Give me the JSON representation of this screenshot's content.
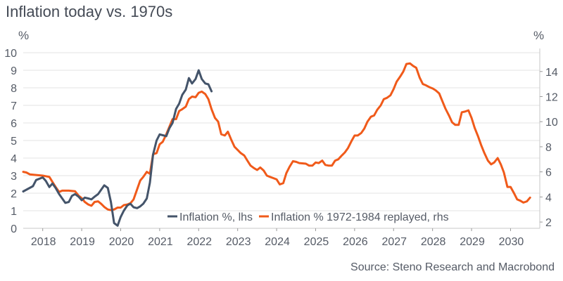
{
  "chart_data": {
    "type": "line",
    "title": "Inflation today vs. 1970s",
    "left_axis": {
      "unit": "%",
      "ylim": [
        0,
        10
      ],
      "ticks": [
        0,
        1,
        2,
        3,
        4,
        5,
        6,
        7,
        8,
        9,
        10
      ]
    },
    "right_axis": {
      "unit": "%",
      "ylim": [
        1.5,
        15.5
      ],
      "ticks": [
        2,
        4,
        6,
        8,
        10,
        12,
        14
      ]
    },
    "x_axis": {
      "xlim": [
        2017.5,
        2030.75
      ],
      "ticks": [
        2018,
        2019,
        2020,
        2021,
        2022,
        2023,
        2024,
        2025,
        2026,
        2027,
        2028,
        2029,
        2030
      ],
      "tick_labels": [
        "2018",
        "2019",
        "2020",
        "2021",
        "2022",
        "2023",
        "2024",
        "2025",
        "2026",
        "2027",
        "2028",
        "2029",
        "2030"
      ]
    },
    "grid": true,
    "legend_position": "bottom-center",
    "series": [
      {
        "name": "Inflation %, lhs",
        "axis": "left",
        "color": "#44546a",
        "points": [
          [
            2017.5,
            2.1
          ],
          [
            2017.75,
            2.4
          ],
          [
            2017.83,
            2.75
          ],
          [
            2018.0,
            2.9
          ],
          [
            2018.08,
            2.7
          ],
          [
            2018.17,
            2.35
          ],
          [
            2018.25,
            2.55
          ],
          [
            2018.33,
            2.3
          ],
          [
            2018.42,
            1.95
          ],
          [
            2018.58,
            1.45
          ],
          [
            2018.67,
            1.5
          ],
          [
            2018.75,
            1.85
          ],
          [
            2018.83,
            1.95
          ],
          [
            2018.92,
            1.8
          ],
          [
            2019.0,
            1.6
          ],
          [
            2019.08,
            1.75
          ],
          [
            2019.17,
            1.7
          ],
          [
            2019.25,
            1.65
          ],
          [
            2019.33,
            1.8
          ],
          [
            2019.42,
            1.95
          ],
          [
            2019.5,
            2.2
          ],
          [
            2019.58,
            2.45
          ],
          [
            2019.67,
            2.3
          ],
          [
            2019.75,
            1.5
          ],
          [
            2019.83,
            0.3
          ],
          [
            2019.92,
            0.15
          ],
          [
            2020.0,
            0.65
          ],
          [
            2020.08,
            1.0
          ],
          [
            2020.17,
            1.3
          ],
          [
            2020.25,
            1.4
          ],
          [
            2020.33,
            1.2
          ],
          [
            2020.42,
            1.15
          ],
          [
            2020.5,
            1.25
          ],
          [
            2020.58,
            1.4
          ],
          [
            2020.67,
            1.7
          ],
          [
            2020.75,
            2.6
          ],
          [
            2020.83,
            4.2
          ],
          [
            2020.92,
            5.0
          ],
          [
            2021.0,
            5.35
          ],
          [
            2021.08,
            5.3
          ],
          [
            2021.17,
            5.25
          ],
          [
            2021.25,
            5.7
          ],
          [
            2021.33,
            6.0
          ],
          [
            2021.42,
            6.8
          ],
          [
            2021.5,
            7.1
          ],
          [
            2021.58,
            7.6
          ],
          [
            2021.67,
            7.9
          ],
          [
            2021.75,
            8.55
          ],
          [
            2021.83,
            8.25
          ],
          [
            2021.92,
            8.5
          ],
          [
            2022.0,
            9.0
          ],
          [
            2022.08,
            8.5
          ],
          [
            2022.17,
            8.25
          ],
          [
            2022.25,
            8.2
          ],
          [
            2022.33,
            7.8
          ]
        ]
      },
      {
        "name": "Inflation % 1972-1984 replayed, rhs",
        "axis": "right",
        "color": "#f05a1a",
        "points": [
          [
            2017.5,
            6.0
          ],
          [
            2017.58,
            5.95
          ],
          [
            2017.67,
            5.8
          ],
          [
            2017.83,
            5.75
          ],
          [
            2018.0,
            5.7
          ],
          [
            2018.17,
            5.6
          ],
          [
            2018.25,
            5.2
          ],
          [
            2018.33,
            4.8
          ],
          [
            2018.42,
            4.4
          ],
          [
            2018.5,
            4.5
          ],
          [
            2018.67,
            4.5
          ],
          [
            2018.83,
            4.45
          ],
          [
            2018.92,
            4.1
          ],
          [
            2019.0,
            3.9
          ],
          [
            2019.08,
            3.6
          ],
          [
            2019.17,
            3.4
          ],
          [
            2019.25,
            3.3
          ],
          [
            2019.33,
            3.6
          ],
          [
            2019.42,
            3.65
          ],
          [
            2019.5,
            3.45
          ],
          [
            2019.58,
            3.2
          ],
          [
            2019.67,
            3.0
          ],
          [
            2019.75,
            2.95
          ],
          [
            2019.83,
            3.0
          ],
          [
            2019.92,
            3.15
          ],
          [
            2020.0,
            3.15
          ],
          [
            2020.08,
            3.35
          ],
          [
            2020.17,
            3.4
          ],
          [
            2020.25,
            3.5
          ],
          [
            2020.33,
            3.8
          ],
          [
            2020.42,
            4.6
          ],
          [
            2020.5,
            5.3
          ],
          [
            2020.58,
            5.6
          ],
          [
            2020.67,
            6.0
          ],
          [
            2020.75,
            5.85
          ],
          [
            2020.83,
            7.4
          ],
          [
            2020.92,
            7.5
          ],
          [
            2021.0,
            8.2
          ],
          [
            2021.08,
            8.4
          ],
          [
            2021.17,
            9.0
          ],
          [
            2021.25,
            9.6
          ],
          [
            2021.33,
            10.2
          ],
          [
            2021.42,
            10.2
          ],
          [
            2021.5,
            10.85
          ],
          [
            2021.58,
            11.0
          ],
          [
            2021.67,
            11.2
          ],
          [
            2021.75,
            11.8
          ],
          [
            2021.83,
            12.0
          ],
          [
            2021.92,
            11.95
          ],
          [
            2022.0,
            12.3
          ],
          [
            2022.08,
            12.4
          ],
          [
            2022.17,
            12.2
          ],
          [
            2022.25,
            11.8
          ],
          [
            2022.33,
            11.0
          ],
          [
            2022.42,
            10.3
          ],
          [
            2022.5,
            10.0
          ],
          [
            2022.58,
            9.0
          ],
          [
            2022.67,
            8.9
          ],
          [
            2022.75,
            9.2
          ],
          [
            2022.83,
            8.6
          ],
          [
            2022.92,
            8.0
          ],
          [
            2023.0,
            7.75
          ],
          [
            2023.08,
            7.5
          ],
          [
            2023.17,
            7.3
          ],
          [
            2023.25,
            6.9
          ],
          [
            2023.33,
            6.5
          ],
          [
            2023.42,
            6.3
          ],
          [
            2023.5,
            6.15
          ],
          [
            2023.58,
            6.35
          ],
          [
            2023.67,
            6.1
          ],
          [
            2023.75,
            5.7
          ],
          [
            2023.83,
            5.6
          ],
          [
            2023.92,
            5.5
          ],
          [
            2024.0,
            5.4
          ],
          [
            2024.08,
            5.0
          ],
          [
            2024.17,
            5.1
          ],
          [
            2024.25,
            5.9
          ],
          [
            2024.33,
            6.4
          ],
          [
            2024.42,
            6.85
          ],
          [
            2024.5,
            6.8
          ],
          [
            2024.58,
            6.7
          ],
          [
            2024.75,
            6.65
          ],
          [
            2024.83,
            6.5
          ],
          [
            2024.92,
            6.5
          ],
          [
            2025.0,
            6.75
          ],
          [
            2025.08,
            6.7
          ],
          [
            2025.17,
            6.9
          ],
          [
            2025.25,
            6.55
          ],
          [
            2025.33,
            6.5
          ],
          [
            2025.42,
            6.5
          ],
          [
            2025.5,
            6.9
          ],
          [
            2025.58,
            7.0
          ],
          [
            2025.67,
            7.3
          ],
          [
            2025.75,
            7.55
          ],
          [
            2025.83,
            7.9
          ],
          [
            2025.92,
            8.45
          ],
          [
            2026.0,
            8.9
          ],
          [
            2026.08,
            8.9
          ],
          [
            2026.17,
            9.1
          ],
          [
            2026.25,
            9.45
          ],
          [
            2026.33,
            10.0
          ],
          [
            2026.42,
            10.4
          ],
          [
            2026.5,
            10.5
          ],
          [
            2026.58,
            10.95
          ],
          [
            2026.67,
            11.3
          ],
          [
            2026.75,
            11.8
          ],
          [
            2026.83,
            11.9
          ],
          [
            2026.92,
            12.1
          ],
          [
            2027.0,
            12.6
          ],
          [
            2027.08,
            13.2
          ],
          [
            2027.17,
            13.6
          ],
          [
            2027.25,
            14.0
          ],
          [
            2027.33,
            14.6
          ],
          [
            2027.42,
            14.65
          ],
          [
            2027.5,
            14.45
          ],
          [
            2027.58,
            14.3
          ],
          [
            2027.67,
            13.5
          ],
          [
            2027.75,
            13.0
          ],
          [
            2027.83,
            12.9
          ],
          [
            2027.92,
            12.75
          ],
          [
            2028.0,
            12.65
          ],
          [
            2028.08,
            12.5
          ],
          [
            2028.17,
            12.25
          ],
          [
            2028.25,
            11.65
          ],
          [
            2028.33,
            11.05
          ],
          [
            2028.42,
            10.5
          ],
          [
            2028.5,
            9.95
          ],
          [
            2028.58,
            9.75
          ],
          [
            2028.67,
            9.75
          ],
          [
            2028.75,
            10.75
          ],
          [
            2028.83,
            10.8
          ],
          [
            2028.92,
            10.9
          ],
          [
            2029.0,
            10.3
          ],
          [
            2029.08,
            9.5
          ],
          [
            2029.17,
            8.8
          ],
          [
            2029.25,
            8.1
          ],
          [
            2029.33,
            7.5
          ],
          [
            2029.42,
            6.9
          ],
          [
            2029.5,
            6.6
          ],
          [
            2029.58,
            6.75
          ],
          [
            2029.67,
            7.1
          ],
          [
            2029.75,
            6.6
          ],
          [
            2029.83,
            5.95
          ],
          [
            2029.92,
            4.8
          ],
          [
            2030.0,
            4.8
          ],
          [
            2030.08,
            4.35
          ],
          [
            2030.17,
            3.8
          ],
          [
            2030.25,
            3.7
          ],
          [
            2030.33,
            3.55
          ],
          [
            2030.42,
            3.65
          ],
          [
            2030.5,
            3.95
          ]
        ]
      }
    ],
    "source": "Source: Steno Research and Macrobond"
  }
}
